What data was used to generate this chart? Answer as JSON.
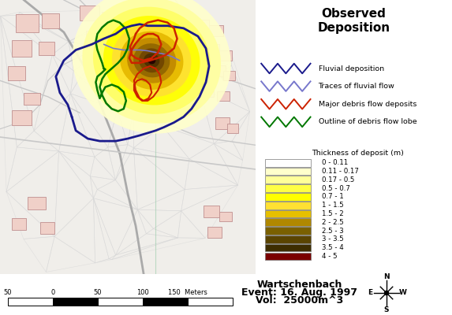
{
  "title": "Observed\nDeposition",
  "title_fontsize": 11,
  "legend_colors": [
    "#1a1a8c",
    "#7777cc",
    "#cc2200",
    "#007700"
  ],
  "legend_labels": [
    "Fluvial deposition",
    "Traces of fluvial flow",
    "Major debris flow deposits",
    "Outline of debris flow lobe"
  ],
  "colorbar_colors": [
    "#fefefe",
    "#ffffcc",
    "#ffff99",
    "#ffff44",
    "#ffff00",
    "#ffe033",
    "#e6c000",
    "#b08800",
    "#7a6000",
    "#5a4400",
    "#3d2d00",
    "#7a0000"
  ],
  "colorbar_labels": [
    "0 - 0.11",
    "0.11 - 0.17",
    "0.17 - 0.5",
    "0.5 - 0.7",
    "0.7 - 1",
    "1 - 1.5",
    "1.5 - 2",
    "2 - 2.5",
    "2.5 - 3",
    "3 - 3.5",
    "3.5 - 4",
    "4 - 5"
  ],
  "colorbar_title": "Thickness of deposit (m)",
  "info_line1": "Wartschenbach",
  "info_line2": "Event: 16. Aug. 1997",
  "info_line3": "Vol:  25000m^3",
  "scalebar_ticks": [
    "50",
    "0",
    "50",
    "100",
    "150",
    "Meters"
  ],
  "deposition_colors": [
    "#ffffcc",
    "#ffffa0",
    "#ffff66",
    "#ffff00",
    "#ffe033",
    "#e6b800",
    "#c08800",
    "#906600",
    "#704400",
    "#4a2e00",
    "#220000"
  ],
  "map_bg": "#f0eeea",
  "panel_bg": "#ffffff",
  "building_face": "#f0d0c8",
  "building_edge": "#c09090",
  "road_color": "#c8c8c8",
  "tri_color": "#d8d8d8"
}
